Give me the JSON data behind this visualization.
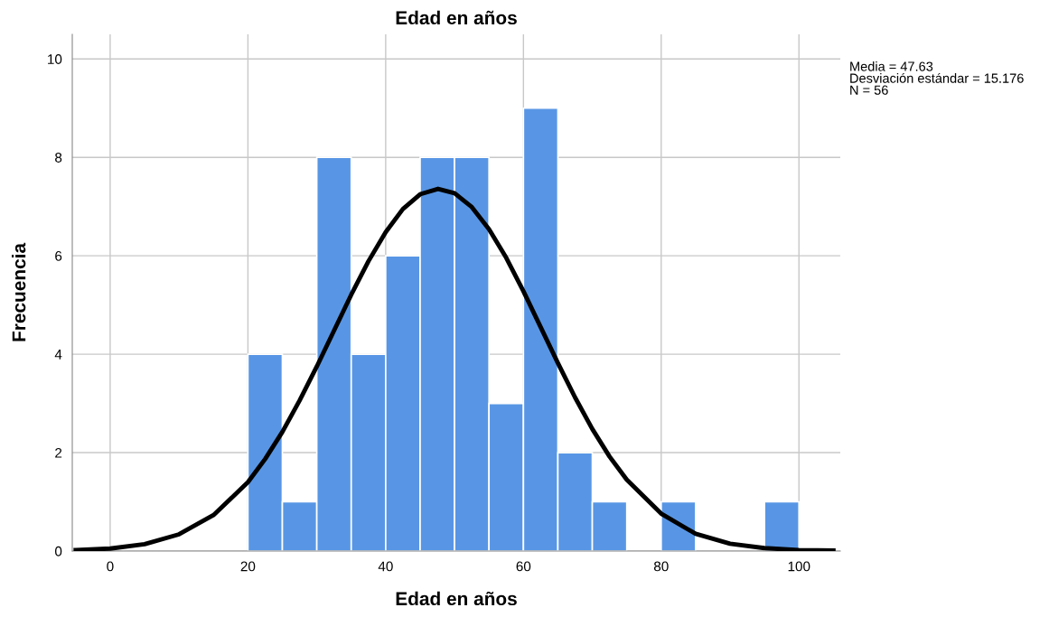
{
  "chart_data": {
    "type": "histogram",
    "title": "Edad en años",
    "xlabel": "Edad en años",
    "ylabel": "Frecuencia",
    "series": [
      {
        "type": "histogram",
        "color": "#5896e5",
        "bins": [
          20,
          25,
          30,
          35,
          40,
          45,
          50,
          55,
          60,
          65,
          70,
          75,
          80,
          85,
          90,
          95,
          100
        ],
        "values": [
          4,
          1,
          8,
          4,
          6,
          8,
          8,
          3,
          9,
          2,
          1,
          0,
          1,
          0,
          0,
          1
        ]
      },
      {
        "type": "line",
        "color": "#000000",
        "x": [
          -5,
          0,
          5,
          10,
          15,
          20,
          22.5,
          25,
          27.5,
          30,
          32.5,
          35,
          37.5,
          40,
          42.5,
          45,
          47.6,
          50,
          52.5,
          55,
          57.5,
          60,
          62.5,
          65,
          67.5,
          70,
          72.5,
          75,
          80,
          85,
          90,
          95,
          100,
          105
        ],
        "values": [
          0.02,
          0.05,
          0.14,
          0.34,
          0.73,
          1.4,
          1.87,
          2.42,
          3.06,
          3.75,
          4.48,
          5.21,
          5.89,
          6.48,
          6.95,
          7.25,
          7.36,
          7.27,
          6.99,
          6.54,
          5.96,
          5.28,
          4.55,
          3.82,
          3.12,
          2.48,
          1.92,
          1.45,
          0.76,
          0.35,
          0.15,
          0.06,
          0.02,
          0.01
        ]
      }
    ],
    "xlim": [
      -5.5,
      106
    ],
    "xticks": [
      0,
      20,
      40,
      60,
      80,
      100
    ],
    "ylim": [
      0,
      10.5
    ],
    "yticks": [
      0,
      2,
      4,
      6,
      8,
      10
    ],
    "grid": true,
    "legend": false,
    "line_style": "solid",
    "marker": "none",
    "annotations": [
      "Media = 47.63\nDesviación estándar = 15.176\nN = 56"
    ]
  }
}
